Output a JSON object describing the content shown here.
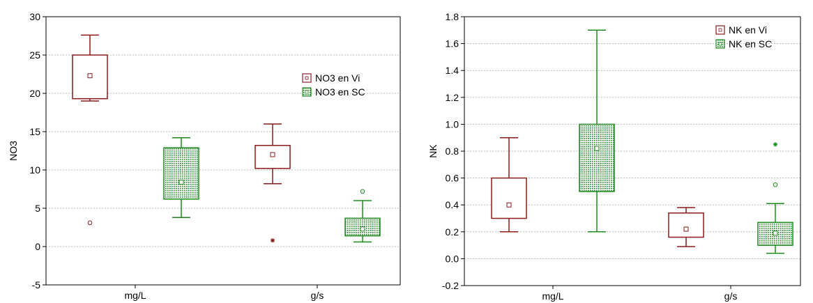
{
  "chart_data": [
    {
      "type": "box",
      "ylabel": "NO3",
      "ylim": [
        -5,
        30
      ],
      "yticks": [
        -5,
        0,
        5,
        10,
        15,
        20,
        25,
        30
      ],
      "ytick_labels": [
        "-5",
        "0",
        "5",
        "10",
        "15",
        "20",
        "25",
        "30"
      ],
      "categories": [
        "mg/L",
        "g/s"
      ],
      "grid": "horizontal dashed",
      "legend_position": "top-right",
      "series": [
        {
          "name": "NO3 en Vi",
          "color": "#8b1a1a",
          "fill": "none",
          "boxes": [
            {
              "category": "mg/L",
              "median": 22.3,
              "q1": 19.3,
              "q3": 25.0,
              "whisker_low": 19.0,
              "whisker_high": 27.6,
              "outliers": [
                3.1
              ],
              "extremes": []
            },
            {
              "category": "g/s",
              "median": 12.0,
              "q1": 10.2,
              "q3": 13.2,
              "whisker_low": 8.2,
              "whisker_high": 16.0,
              "outliers": [],
              "extremes": [
                0.8
              ]
            }
          ]
        },
        {
          "name": "NO3 en SC",
          "color": "#1e8a1e",
          "fill": "dotted",
          "boxes": [
            {
              "category": "mg/L",
              "median": 8.4,
              "q1": 6.2,
              "q3": 12.9,
              "whisker_low": 3.8,
              "whisker_high": 14.2,
              "outliers": [],
              "extremes": []
            },
            {
              "category": "g/s",
              "median": 2.3,
              "q1": 1.4,
              "q3": 3.7,
              "whisker_low": 0.6,
              "whisker_high": 6.0,
              "outliers": [
                7.2
              ],
              "extremes": []
            }
          ]
        }
      ]
    },
    {
      "type": "box",
      "ylabel": "NK",
      "ylim": [
        -0.2,
        1.8
      ],
      "yticks": [
        -0.2,
        0.0,
        0.2,
        0.4,
        0.6,
        0.8,
        1.0,
        1.2,
        1.4,
        1.6,
        1.8
      ],
      "ytick_labels": [
        "-0.2",
        "0.0",
        "0.2",
        "0.4",
        "0.6",
        "0.8",
        "1.0",
        "1.2",
        "1.4",
        "1.6",
        "1.8"
      ],
      "categories": [
        "mg/L",
        "g/s"
      ],
      "grid": "horizontal dashed",
      "legend_position": "top-right",
      "series": [
        {
          "name": "NK en Vi",
          "color": "#8b1a1a",
          "fill": "none",
          "boxes": [
            {
              "category": "mg/L",
              "median": 0.4,
              "q1": 0.3,
              "q3": 0.6,
              "whisker_low": 0.2,
              "whisker_high": 0.9,
              "outliers": [],
              "extremes": []
            },
            {
              "category": "g/s",
              "median": 0.22,
              "q1": 0.16,
              "q3": 0.34,
              "whisker_low": 0.09,
              "whisker_high": 0.38,
              "outliers": [],
              "extremes": []
            }
          ]
        },
        {
          "name": "NK en SC",
          "color": "#1e8a1e",
          "fill": "dotted",
          "boxes": [
            {
              "category": "mg/L",
              "median": 0.82,
              "q1": 0.5,
              "q3": 1.0,
              "whisker_low": 0.2,
              "whisker_high": 1.7,
              "outliers": [],
              "extremes": []
            },
            {
              "category": "g/s",
              "median": 0.19,
              "q1": 0.1,
              "q3": 0.27,
              "whisker_low": 0.04,
              "whisker_high": 0.41,
              "outliers": [
                0.55
              ],
              "extremes": [
                0.85
              ]
            }
          ]
        }
      ]
    }
  ]
}
